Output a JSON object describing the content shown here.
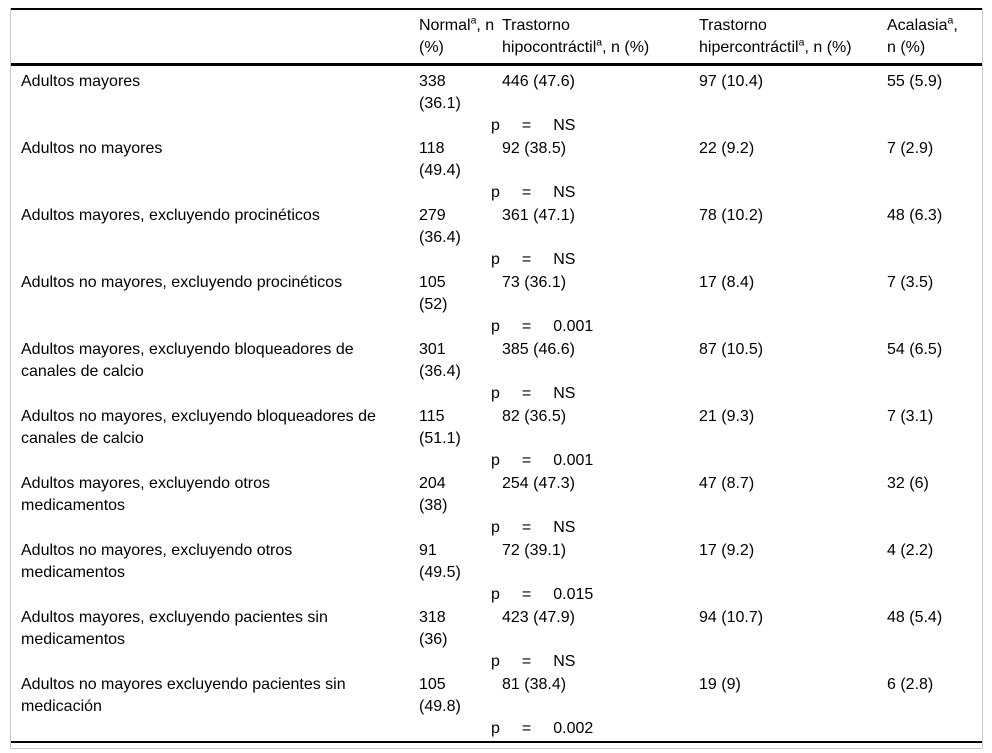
{
  "table": {
    "p_tokens": {
      "p": "p",
      "eq": "="
    },
    "header": {
      "cols": [
        {
          "l1a": "Normal",
          "l1sup": "a",
          "l1b": ", n",
          "l2a": "(%)",
          "l2sup": "",
          "l2b": ""
        },
        {
          "l1a": "Trastorno",
          "l1sup": "",
          "l1b": "",
          "l2a": "hipocontráctil",
          "l2sup": "a",
          "l2b": ", n (%)"
        },
        {
          "l1a": "Trastorno",
          "l1sup": "",
          "l1b": "",
          "l2a": "hipercontráctil",
          "l2sup": "a",
          "l2b": ", n (%)"
        },
        {
          "l1a": "Acalasia",
          "l1sup": "a",
          "l1b": ",",
          "l2a": "n (%)",
          "l2sup": "",
          "l2b": ""
        }
      ]
    },
    "rows": [
      {
        "label": "Adultos mayores",
        "normal_n": "338",
        "normal_pct": "(36.1)",
        "hipo": "446 (47.6)",
        "hiper": "97 (10.4)",
        "acalasia": "55 (5.9)",
        "p_value": "NS"
      },
      {
        "label": "Adultos no mayores",
        "normal_n": "118",
        "normal_pct": "(49.4)",
        "hipo": "92 (38.5)",
        "hiper": "22 (9.2)",
        "acalasia": "7 (2.9)",
        "p_value": "NS"
      },
      {
        "label": "Adultos mayores, excluyendo procinéticos",
        "normal_n": "279",
        "normal_pct": "(36.4)",
        "hipo": "361 (47.1)",
        "hiper": "78 (10.2)",
        "acalasia": "48 (6.3)",
        "p_value": "NS"
      },
      {
        "label": "Adultos no mayores, excluyendo procinéticos",
        "normal_n": "105",
        "normal_pct": "(52)",
        "hipo": "73 (36.1)",
        "hiper": "17 (8.4)",
        "acalasia": "7 (3.5)",
        "p_value": "0.001"
      },
      {
        "label": "Adultos mayores, excluyendo bloqueadores de\ncanales de calcio",
        "normal_n": "301",
        "normal_pct": "(36.4)",
        "hipo": "385 (46.6)",
        "hiper": "87 (10.5)",
        "acalasia": "54 (6.5)",
        "p_value": "NS"
      },
      {
        "label": "Adultos no mayores, excluyendo bloqueadores de\ncanales de calcio",
        "normal_n": "115",
        "normal_pct": "(51.1)",
        "hipo": "82 (36.5)",
        "hiper": "21 (9.3)",
        "acalasia": "7 (3.1)",
        "p_value": "0.001"
      },
      {
        "label": "Adultos mayores, excluyendo otros\nmedicamentos",
        "normal_n": "204",
        "normal_pct": "(38)",
        "hipo": "254 (47.3)",
        "hiper": "47 (8.7)",
        "acalasia": "32 (6)",
        "p_value": "NS"
      },
      {
        "label": "Adultos no mayores, excluyendo otros\nmedicamentos",
        "normal_n": "91",
        "normal_pct": "(49.5)",
        "hipo": "72 (39.1)",
        "hiper": "17 (9.2)",
        "acalasia": "4 (2.2)",
        "p_value": "0.015"
      },
      {
        "label": "Adultos mayores, excluyendo pacientes sin\nmedicamentos",
        "normal_n": "318",
        "normal_pct": "(36)",
        "hipo": "423 (47.9)",
        "hiper": "94 (10.7)",
        "acalasia": "48 (5.4)",
        "p_value": "NS"
      },
      {
        "label": "Adultos no mayores excluyendo pacientes sin\nmedicación",
        "normal_n": "105",
        "normal_pct": "(49.8)",
        "hipo": "81 (38.4)",
        "hiper": "19 (9)",
        "acalasia": "6 (2.8)",
        "p_value": "0.002"
      }
    ]
  }
}
